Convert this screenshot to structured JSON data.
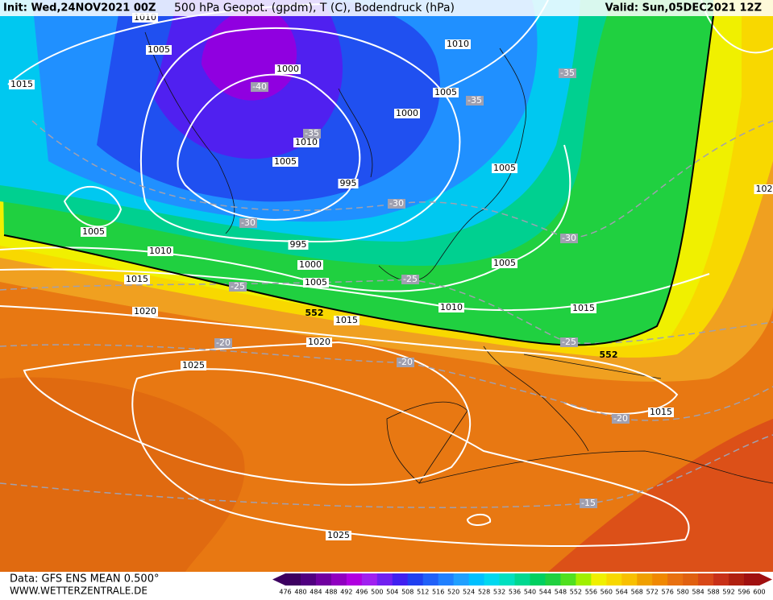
{
  "header": {
    "init": "Init: Wed,24NOV2021 00Z",
    "title": "500 hPa Geopot. (gpdm), T (C), Bodendruck (hPa)",
    "valid": "Valid: Sun,05DEC2021 12Z"
  },
  "isobar_labels": [
    1010,
    1005,
    1015,
    1000,
    1010,
    1005,
    995,
    1000,
    1005,
    1010,
    1005,
    1005,
    1010,
    995,
    1000,
    1005,
    1005,
    1015,
    1020,
    1010,
    1015,
    1015,
    1020,
    1025,
    1015,
    1025,
    "102"
  ],
  "temperature_labels": [
    -40,
    -35,
    -35,
    -35,
    -30,
    -30,
    -30,
    -25,
    -25,
    -25,
    -20,
    -20,
    -20,
    -15
  ],
  "geopotential_labels": [
    552,
    552
  ],
  "footer": {
    "data": "Data: GFS ENS MEAN 0.500°",
    "url": "WWW.WETTERZENTRALE.DE"
  },
  "colorbar": {
    "labels": [
      476,
      480,
      484,
      488,
      492,
      496,
      500,
      504,
      508,
      512,
      516,
      520,
      524,
      528,
      532,
      536,
      540,
      544,
      548,
      552,
      556,
      560,
      564,
      568,
      572,
      576,
      580,
      584,
      588,
      592,
      596,
      600
    ],
    "colors": [
      "#3c0060",
      "#500080",
      "#7000a0",
      "#9000c0",
      "#b000e0",
      "#a020f0",
      "#7020f0",
      "#4020f0",
      "#2040f0",
      "#2060f8",
      "#2080ff",
      "#20a0ff",
      "#00c0ff",
      "#00d8f0",
      "#00e0c0",
      "#00d890",
      "#00d060",
      "#20d040",
      "#50e020",
      "#a0f000",
      "#f0f000",
      "#f8d800",
      "#f8c000",
      "#f0a000",
      "#f08800",
      "#e87010",
      "#e06010",
      "#d84818",
      "#c83018",
      "#b02010",
      "#a01010"
    ]
  }
}
